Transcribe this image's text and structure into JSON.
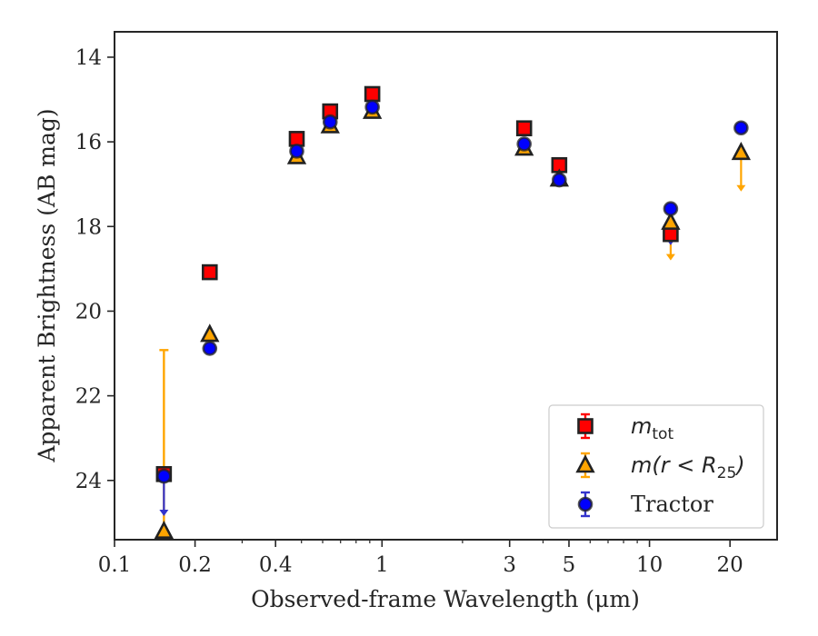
{
  "chart_data": {
    "type": "scatter",
    "title": "",
    "xlabel": "Observed-frame Wavelength (μm)",
    "ylabel": "Apparent Brightness (AB mag)",
    "xscale": "log",
    "xlim": [
      0.1,
      30
    ],
    "ylim": [
      25.4,
      13.4
    ],
    "y_inverted": true,
    "x_ticks": [
      0.1,
      0.2,
      0.4,
      1,
      3,
      5,
      10,
      20
    ],
    "x_tick_labels": [
      "0.1",
      "0.2",
      "0.4",
      "1",
      "3",
      "5",
      "10",
      "20"
    ],
    "y_ticks": [
      14,
      16,
      18,
      20,
      22,
      24
    ],
    "y_tick_labels": [
      "14",
      "16",
      "18",
      "20",
      "22",
      "24"
    ],
    "grid": false,
    "legend": {
      "placement": "bottom-right"
    },
    "series": [
      {
        "key": "tot",
        "legend_main": "m",
        "legend_sub": "tot",
        "marker": "square",
        "color": "#ff0000",
        "errcolor": "#ff0000",
        "points": [
          {
            "x": 0.153,
            "y": 23.85,
            "upper_limit": false
          },
          {
            "x": 0.227,
            "y": 19.08,
            "upper_limit": false
          },
          {
            "x": 0.48,
            "y": 15.93,
            "upper_limit": false
          },
          {
            "x": 0.64,
            "y": 15.28,
            "upper_limit": false
          },
          {
            "x": 0.92,
            "y": 14.87,
            "upper_limit": false
          },
          {
            "x": 3.4,
            "y": 15.68,
            "upper_limit": false
          },
          {
            "x": 4.6,
            "y": 16.55,
            "upper_limit": false
          },
          {
            "x": 12.0,
            "y": 18.18,
            "upper_limit": false
          }
        ]
      },
      {
        "key": "r25",
        "legend_main": "m(r < R",
        "legend_sub": "25",
        "legend_end": ")",
        "marker": "triangle",
        "color": "#ffa500",
        "errcolor": "#ffa500",
        "points": [
          {
            "x": 0.153,
            "y": 25.2,
            "upper_limit": false,
            "err_lo": 20.92,
            "err_hi": 25.2
          },
          {
            "x": 0.227,
            "y": 20.55,
            "upper_limit": false
          },
          {
            "x": 0.48,
            "y": 16.35,
            "upper_limit": false
          },
          {
            "x": 0.64,
            "y": 15.62,
            "upper_limit": false
          },
          {
            "x": 0.92,
            "y": 15.28,
            "upper_limit": false
          },
          {
            "x": 3.4,
            "y": 16.15,
            "upper_limit": false
          },
          {
            "x": 4.6,
            "y": 16.88,
            "upper_limit": false
          },
          {
            "x": 12.0,
            "y": 17.9,
            "upper_limit": true,
            "limit_to": 18.78
          },
          {
            "x": 22.0,
            "y": 16.25,
            "upper_limit": true,
            "limit_to": 17.15
          }
        ]
      },
      {
        "key": "tractor",
        "legend_main": "Tractor",
        "marker": "circle",
        "color": "#0000ff",
        "errcolor": "#3333cc",
        "points": [
          {
            "x": 0.153,
            "y": 23.9,
            "upper_limit": true,
            "limit_to": 24.82
          },
          {
            "x": 0.227,
            "y": 20.88,
            "upper_limit": false
          },
          {
            "x": 0.48,
            "y": 16.22,
            "upper_limit": false
          },
          {
            "x": 0.64,
            "y": 15.53,
            "upper_limit": false
          },
          {
            "x": 0.92,
            "y": 15.18,
            "upper_limit": false
          },
          {
            "x": 3.4,
            "y": 16.05,
            "upper_limit": false
          },
          {
            "x": 4.6,
            "y": 16.9,
            "upper_limit": false
          },
          {
            "x": 12.0,
            "y": 17.58,
            "upper_limit": true,
            "limit_to": 18.42
          },
          {
            "x": 22.0,
            "y": 15.67,
            "upper_limit": false
          }
        ]
      }
    ]
  }
}
